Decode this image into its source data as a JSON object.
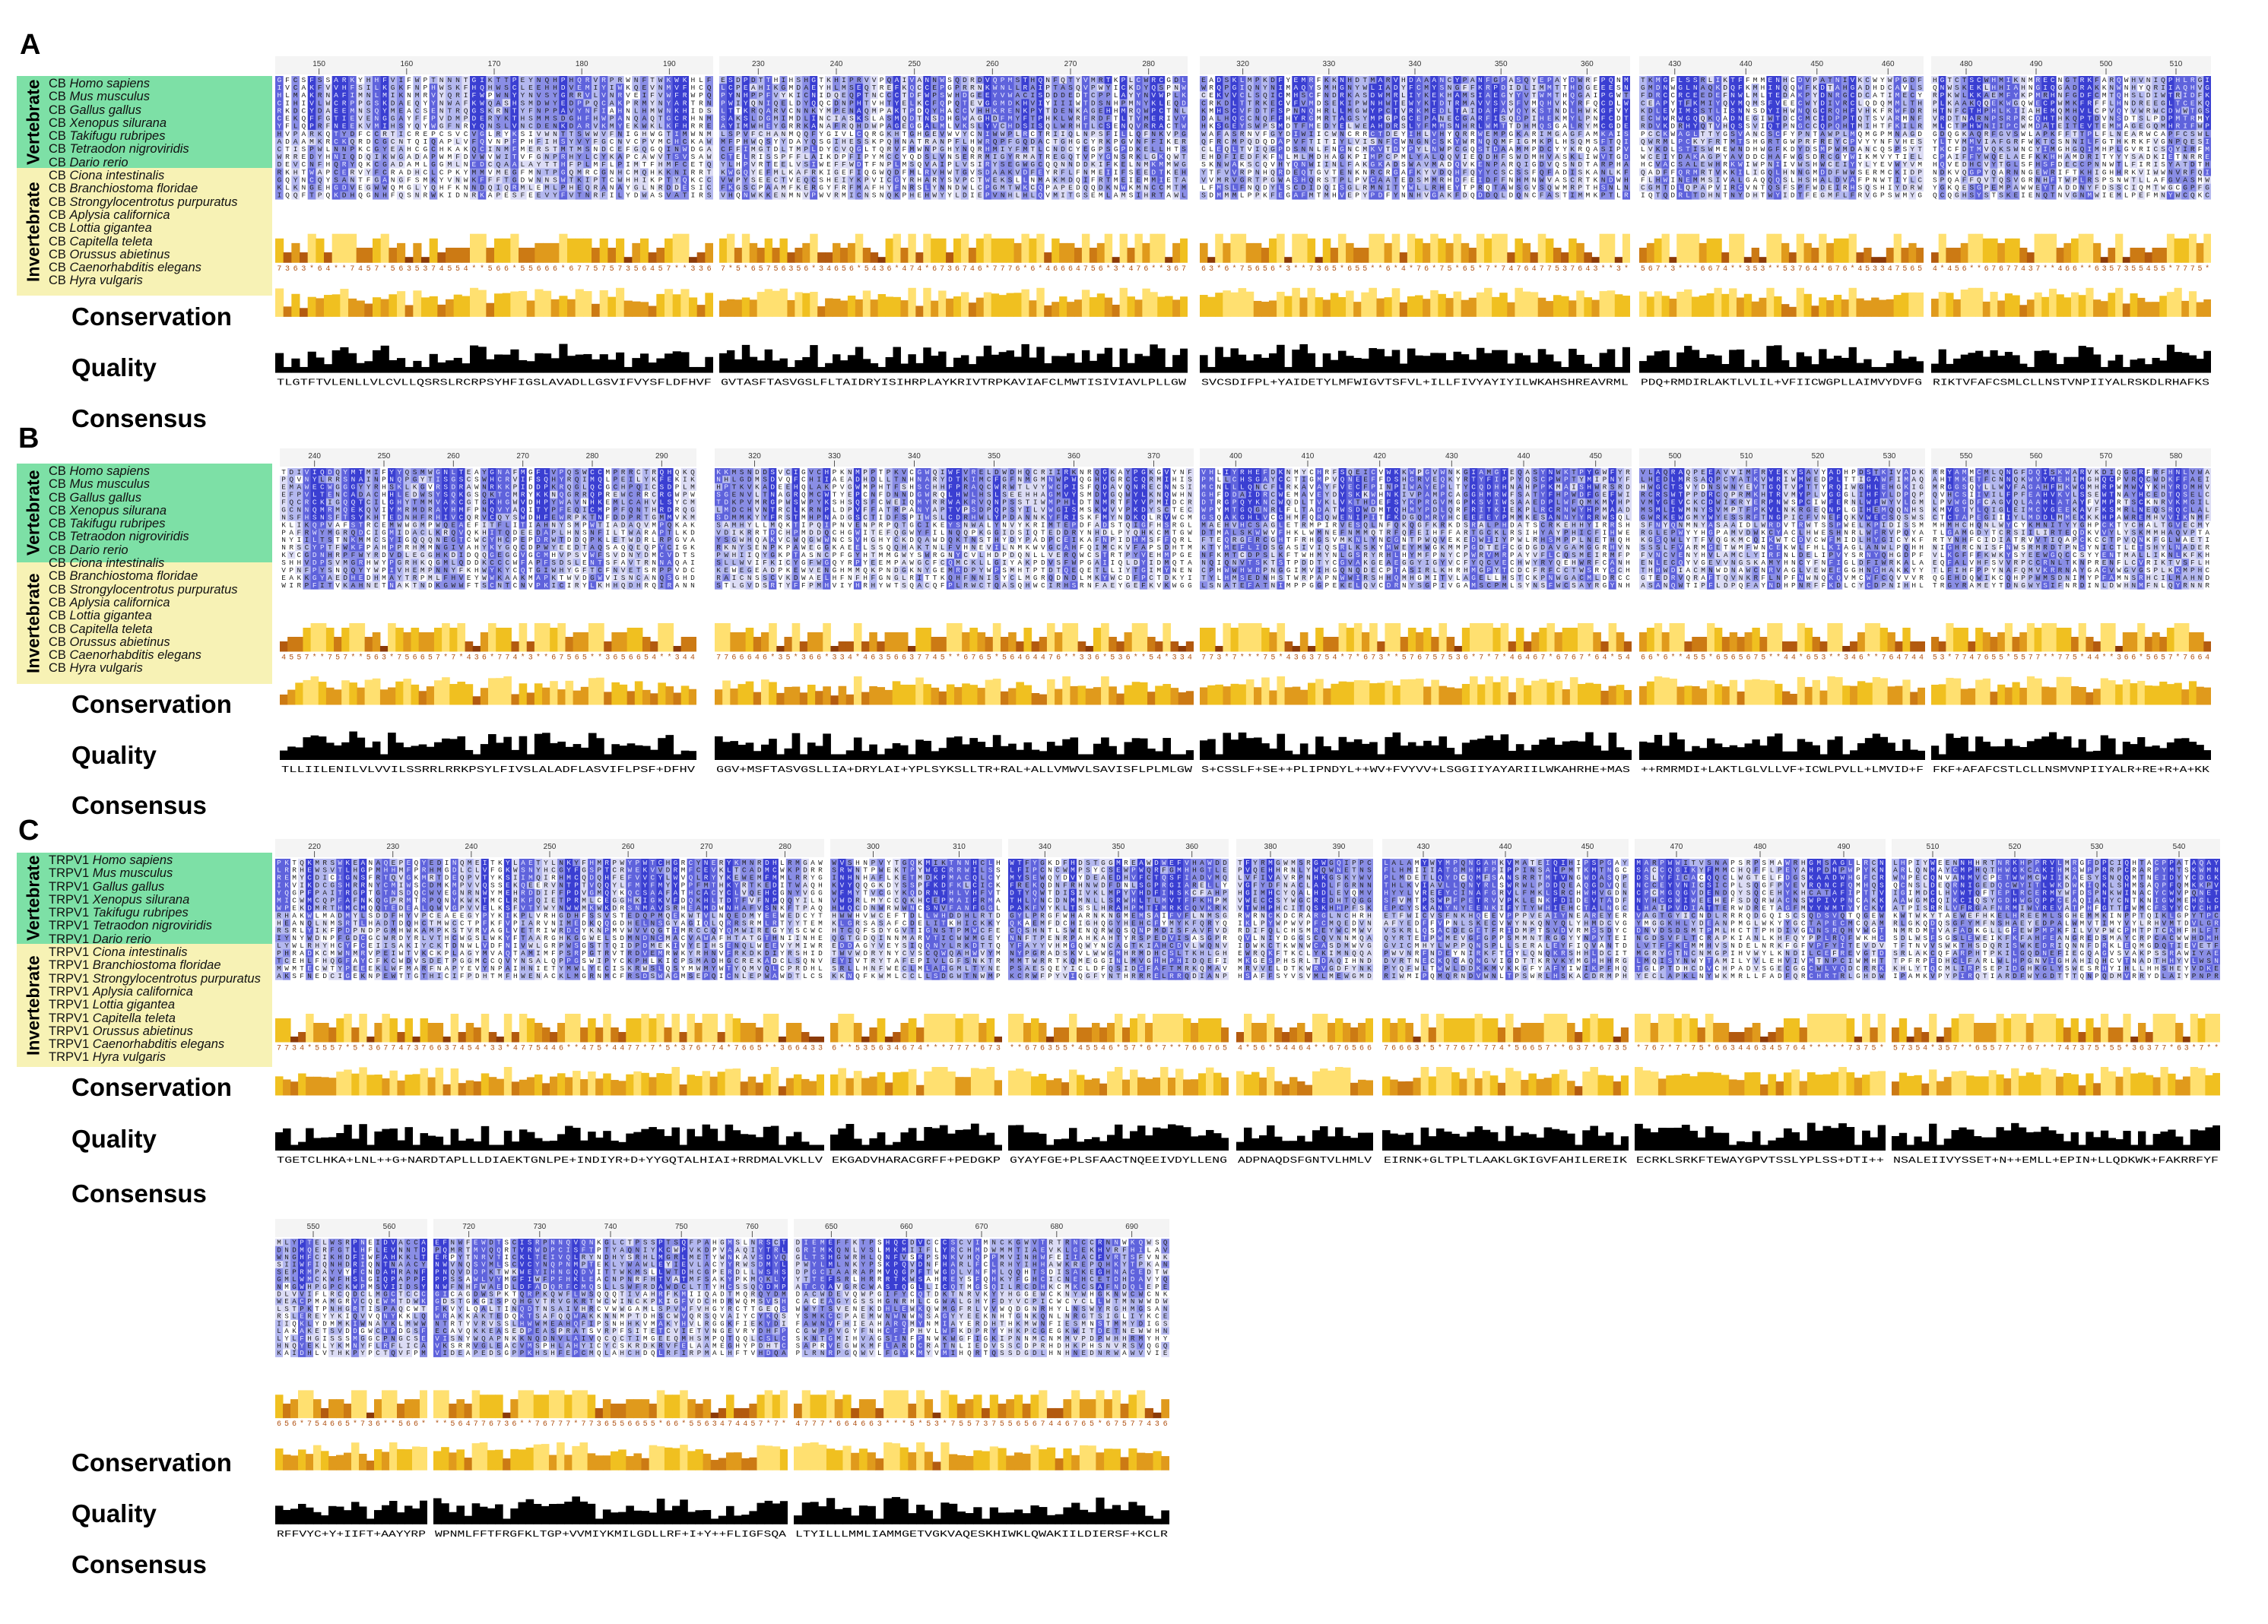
{
  "figure": {
    "panels": [
      {
        "letter": "A",
        "prefix": "CB",
        "vertebrate_label": "Vertebrate",
        "invertebrate_label": "Invertebrate",
        "vertebrates": [
          "Homo sapiens",
          "Mus musculus",
          "Gallus gallus",
          "Xenopus silurana",
          "Takifugu rubripes",
          "Tetraodon nigroviridis",
          "Dario rerio"
        ],
        "invertebrates": [
          "Ciona intestinalis",
          "Branchiostoma floridae",
          "Strongylocentrotus purpuratus",
          "Aplysia californica",
          "Lottia gigantea",
          "Capitella teleta",
          "Orussus abietinus",
          "Caenorhabditis elegans",
          "Hyra vulgaris"
        ],
        "tracks": [
          "Conservation",
          "Quality",
          "Consensus"
        ],
        "rulers": [
          [
            "150",
            "160",
            "170",
            "180",
            "190"
          ],
          [
            "230",
            "240",
            "250",
            "260",
            "270",
            "280"
          ],
          [
            "320",
            "330",
            "340",
            "350",
            "360"
          ],
          [
            "430",
            "440",
            "450",
            "460"
          ],
          [
            "480",
            "490",
            "500",
            "510"
          ]
        ],
        "consensus": [
          "TLGTFTVLENLLVLCVLLQSRSLRCRPSYHFIGSLAVADLLGSVIFVYSFLDFHVF",
          "GVTASFTASVGSLFLTAIDRYISIHRPLAYKRIVTRPKAVIAFCLMWTISIVIAVLPLLGW",
          "SVCSDIFPL+YAIDETYLMFWIGVTSFVL+ILLFIVYAYIYILWKAHSHREAVRML",
          "PDQ+RMDIRLAKTLVLIL+VFIICWGPLLAIMVYDVFG",
          "RIKTVFAFCSMLCLLNSTVNPIIYALRSKDLRHAFKS"
        ]
      },
      {
        "letter": "B",
        "prefix": "CB",
        "vertebrate_label": "Vertebrate",
        "invertebrate_label": "Invertebrate",
        "vertebrates": [
          "Homo sapiens",
          "Mus musculus",
          "Gallus gallus",
          "Xenopus silurana",
          "Takifugu rubripes",
          "Tetraodon nigroviridis",
          "Dario rerio"
        ],
        "invertebrates": [
          "Ciona intestinalis",
          "Branchiostoma floridae",
          "Strongylocentrotus purpuratus",
          "Aplysia californica",
          "Lottia gigantea",
          "Capitella teleta",
          "Orussus abietinus",
          "Caenorhabditis elegans",
          "Hyra vulgaris"
        ],
        "tracks": [
          "Conservation",
          "Quality",
          "Consensus"
        ],
        "rulers": [
          [
            "240",
            "250",
            "260",
            "270",
            "280",
            "290"
          ],
          [
            "320",
            "330",
            "340",
            "350",
            "360",
            "370"
          ],
          [
            "400",
            "410",
            "420",
            "430",
            "440",
            "450"
          ],
          [
            "500",
            "510",
            "520",
            "530"
          ],
          [
            "550",
            "560",
            "570",
            "580"
          ]
        ],
        "consensus": [
          "TLLIILENILVLVVILSSRRLRRKPSYLFIVSLALADFLASVIFLPSF+DFHV",
          "GGV+MSFTASVGSLLIA+DRYLAI+YPLSYKSLLTR+RAL+ALLVMWVLSAVISFLPLMLGW",
          "S+CSSLF+SE++PLIPNDYL++WV+FVYVV+LSGGIIYAYARIILWKAHRHE+MAS",
          "++RMRMDI+LAKTLGLVLLVF+ICWLPVLL+LMVID+F",
          "FKF+AFAFCSTLCLLNSMVNPIIYALR+RE+R+A+KK"
        ]
      },
      {
        "letter": "C",
        "prefix": "TRPV1",
        "vertebrate_label": "Vertebrate",
        "invertebrate_label": "Invertebrate",
        "vertebrates": [
          "Homo sapiens",
          "Mus musculus",
          "Gallus gallus",
          "Xenopus silurana",
          "Takifugu rubripes",
          "Tetraodon nigroviridis",
          "Dario rerio"
        ],
        "invertebrates": [
          "Ciona intestinalis",
          "Branchiostoma floridae",
          "Strongylocentrotus purpuratus",
          "Aplysia californica",
          "Lottia gigantea",
          "Capitella teleta",
          "Orussus abietinus",
          "Caenorhabditis elegans",
          "Hyra vulgaris"
        ],
        "tracks": [
          "Conservation",
          "Quality",
          "Consensus"
        ],
        "rulers": [
          [
            "220",
            "230",
            "240",
            "250",
            "260",
            "270",
            "280"
          ],
          [
            "300",
            "310"
          ],
          [
            "340",
            "350",
            "360"
          ],
          [
            "380",
            "390"
          ],
          [
            "430",
            "440",
            "450"
          ],
          [
            "470",
            "480",
            "490"
          ],
          [
            "510",
            "520",
            "530",
            "540"
          ]
        ],
        "consensus": [
          "TGETCLHKA+LNL++G+NARDTAPLLLDIAEKTGNLPE+INDIYR+D+YYGQTALHIAI+RRDMALVKLLV",
          "EKGADVHARACGRFF+PEDGKP",
          "GYAYFGE+PLSFAACTNQEEIVDYLLENG",
          "ADPNAQDSFGNTVLHMLV",
          "EIRNK+GLTPLTLAAKLGKIGVFAHILEREIK",
          "ECRKLSRKFTEWAYGPVTSSLYPLSS+DTI++",
          "NSALEIIVYSSET+N++EMLL+EPIN+LLQDKWK+FAKRRFYF"
        ]
      },
      {
        "letter": "",
        "tracks": [
          "Conservation",
          "Quality",
          "Consensus"
        ],
        "rulers": [
          [
            "550",
            "560"
          ],
          [
            "720",
            "730",
            "740",
            "750",
            "760"
          ],
          [
            "650",
            "660",
            "670",
            "680",
            "690"
          ]
        ],
        "consensus": [
          "RFFVYC+Y+IIFT+AAYYRP",
          "WPNMLFFTFRGFKLTGP+VVMIYKMILGDLLRF+I+Y++FLIGFSQA",
          "LTYILLLMMLIAMMGETVGKVAQESKHIWKLQWAKIILDIERSF+KCLR"
        ]
      }
    ]
  }
}
